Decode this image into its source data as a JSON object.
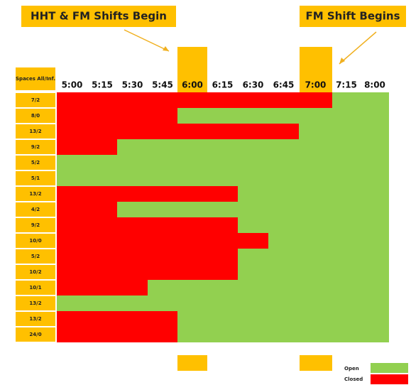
{
  "callouts": [
    "HHT & FM Shifts Begin",
    "FM Shift Begins"
  ],
  "header": "Spaces All/Inf.",
  "columns": [
    "5:00",
    "5:15",
    "5:30",
    "5:45",
    "6:00",
    "6:15",
    "6:30",
    "6:45",
    "7:00",
    "7:15",
    "8:00"
  ],
  "rows": [
    {
      "label": "7/2",
      "closed_columns": 9
    },
    {
      "label": "8/0",
      "closed_columns": 4
    },
    {
      "label": "13/2",
      "closed_columns": 8
    },
    {
      "label": "9/2",
      "closed_columns": 2
    },
    {
      "label": "5/2",
      "closed_columns": 0
    },
    {
      "label": "5/1",
      "closed_columns": 0
    },
    {
      "label": "13/2",
      "closed_columns": 6
    },
    {
      "label": "4/2",
      "closed_columns": 2
    },
    {
      "label": "9/2",
      "closed_columns": 6
    },
    {
      "label": "10/0",
      "closed_columns": 7
    },
    {
      "label": "5/2",
      "closed_columns": 6
    },
    {
      "label": "10/2",
      "closed_columns": 6
    },
    {
      "label": "10/1",
      "closed_columns": 3
    },
    {
      "label": "13/2",
      "closed_columns": 0
    },
    {
      "label": "13/2",
      "closed_columns": 4
    },
    {
      "label": "24/0",
      "closed_columns": 4
    }
  ],
  "legend": [
    "Open",
    "Closed"
  ]
}
